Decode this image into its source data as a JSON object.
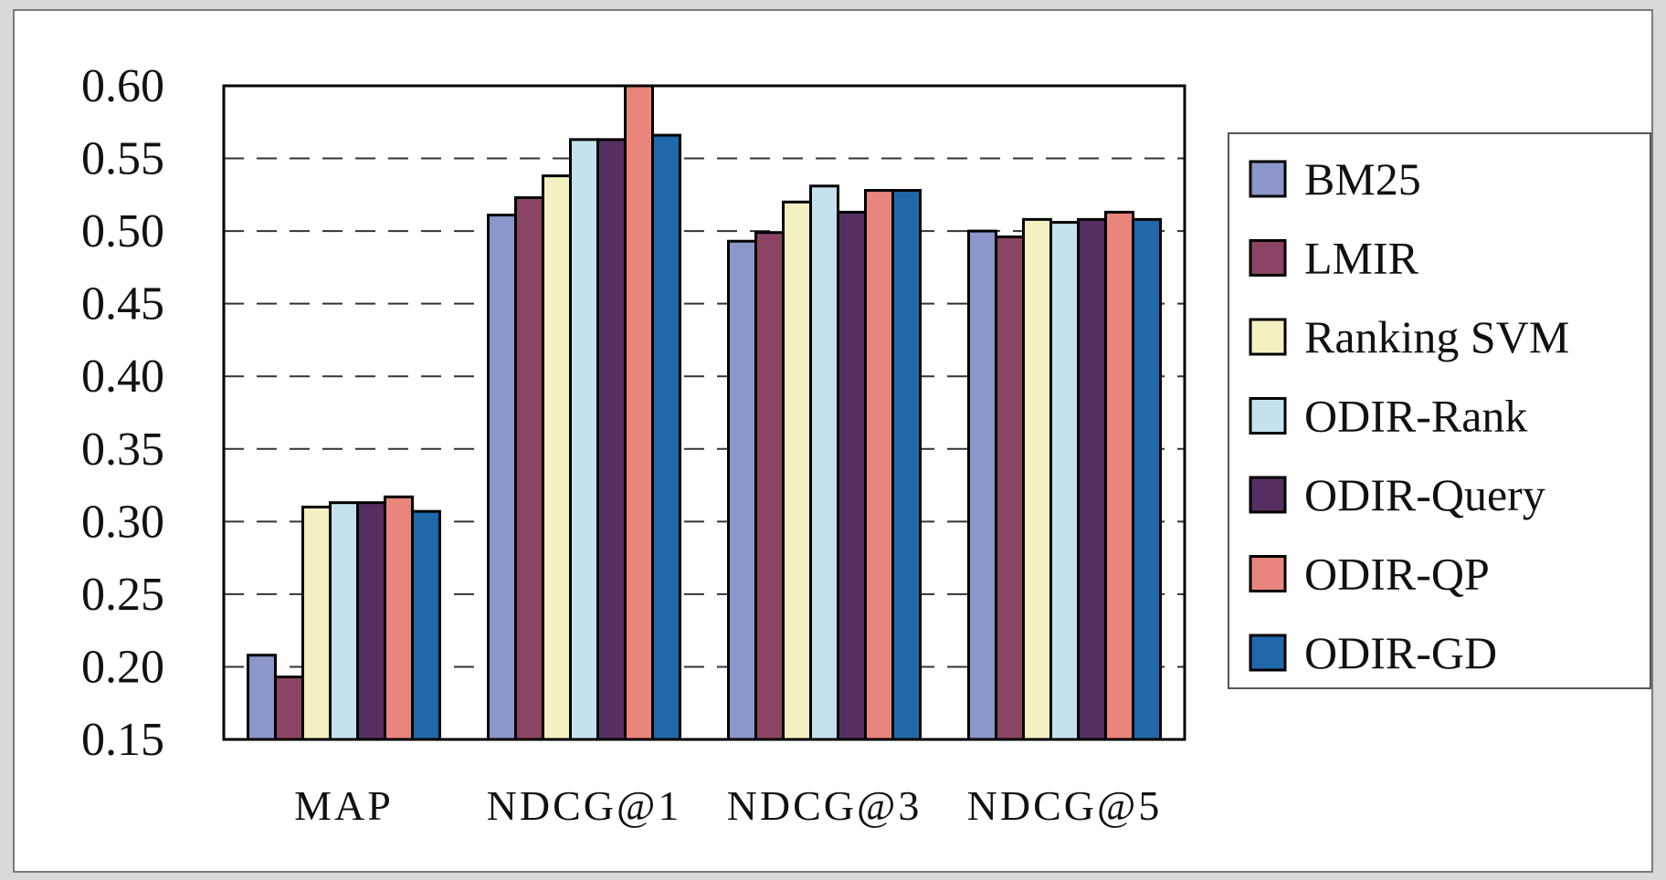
{
  "chart_data": {
    "type": "bar",
    "title": "",
    "xlabel": "",
    "ylabel": "",
    "categories": [
      "MAP",
      "NDCG@1",
      "NDCG@3",
      "NDCG@5"
    ],
    "ylim": [
      0.15,
      0.6
    ],
    "yticks": [
      "0.15",
      "0.20",
      "0.25",
      "0.30",
      "0.35",
      "0.40",
      "0.45",
      "0.50",
      "0.55",
      "0.60"
    ],
    "grid": "dashed horizontal",
    "legend_position": "right",
    "series": [
      {
        "name": "BM25",
        "color": "#8b96c9",
        "values": [
          0.208,
          0.511,
          0.493,
          0.5
        ]
      },
      {
        "name": "LMIR",
        "color": "#8b4463",
        "values": [
          0.193,
          0.523,
          0.499,
          0.496
        ]
      },
      {
        "name": "Ranking SVM",
        "color": "#f3f0c2",
        "values": [
          0.31,
          0.538,
          0.52,
          0.508
        ]
      },
      {
        "name": "ODIR-Rank",
        "color": "#c4e2ed",
        "values": [
          0.313,
          0.563,
          0.531,
          0.506
        ]
      },
      {
        "name": "ODIR-Query",
        "color": "#552f61",
        "values": [
          0.313,
          0.563,
          0.513,
          0.508
        ]
      },
      {
        "name": "ODIR-QP",
        "color": "#e9857d",
        "values": [
          0.317,
          0.6,
          0.528,
          0.513
        ]
      },
      {
        "name": "ODIR-GD",
        "color": "#2168aa",
        "values": [
          0.307,
          0.566,
          0.528,
          0.508
        ]
      }
    ]
  }
}
